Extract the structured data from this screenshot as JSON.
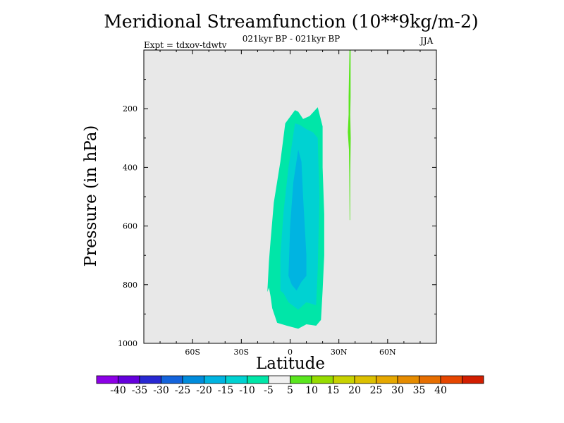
{
  "chart_data": {
    "type": "contour",
    "title": "Meridional Streamfunction (10**9kg/m-2)",
    "subtitle": "021kyr BP - 021kyr BP",
    "expt_label": "Expt = tdxov-tdwtv",
    "season": "JJA",
    "xlabel": "Latitude",
    "ylabel": "Pressure (in hPa)",
    "xlim": [
      -90,
      90
    ],
    "ylim": [
      1000,
      0
    ],
    "y_inverted": true,
    "x_ticks": [
      {
        "value": -60,
        "label": "60S"
      },
      {
        "value": -30,
        "label": "30S"
      },
      {
        "value": 0,
        "label": "0"
      },
      {
        "value": 30,
        "label": "30N"
      },
      {
        "value": 60,
        "label": "60N"
      }
    ],
    "y_ticks": [
      {
        "value": 200,
        "label": "200"
      },
      {
        "value": 400,
        "label": "400"
      },
      {
        "value": 600,
        "label": "600"
      },
      {
        "value": 800,
        "label": "800"
      },
      {
        "value": 1000,
        "label": "1000"
      }
    ],
    "background_color": "#e8e8e8",
    "regions": [
      {
        "level": "-10 to -5",
        "color": "#00e6a8",
        "points": [
          [
            -14,
            825
          ],
          [
            -13,
            720
          ],
          [
            -12,
            650
          ],
          [
            -10,
            520
          ],
          [
            -6,
            380
          ],
          [
            -3,
            250
          ],
          [
            3,
            205
          ],
          [
            5,
            210
          ],
          [
            8,
            235
          ],
          [
            12,
            225
          ],
          [
            17,
            195
          ],
          [
            20,
            260
          ],
          [
            20,
            400
          ],
          [
            21,
            560
          ],
          [
            21,
            700
          ],
          [
            20,
            820
          ],
          [
            19,
            920
          ],
          [
            16,
            940
          ],
          [
            10,
            935
          ],
          [
            5,
            950
          ],
          [
            -2,
            940
          ],
          [
            -8,
            930
          ],
          [
            -11,
            880
          ],
          [
            -12,
            840
          ],
          [
            -13,
            810
          ],
          [
            -14,
            825
          ]
        ]
      },
      {
        "level": "-15 to -10",
        "color": "#00d2d2",
        "points": [
          [
            -6,
            820
          ],
          [
            -6,
            700
          ],
          [
            -4,
            550
          ],
          [
            -1,
            400
          ],
          [
            3,
            250
          ],
          [
            6,
            255
          ],
          [
            10,
            270
          ],
          [
            14,
            280
          ],
          [
            17,
            300
          ],
          [
            18,
            500
          ],
          [
            17,
            750
          ],
          [
            16,
            870
          ],
          [
            10,
            860
          ],
          [
            5,
            885
          ],
          [
            -1,
            860
          ],
          [
            -4,
            830
          ],
          [
            -6,
            820
          ]
        ]
      },
      {
        "level": "-20 to -15",
        "color": "#00b4e1",
        "points": [
          [
            -1,
            770
          ],
          [
            0,
            600
          ],
          [
            2,
            450
          ],
          [
            5,
            340
          ],
          [
            7,
            380
          ],
          [
            8,
            500
          ],
          [
            10,
            700
          ],
          [
            10,
            770
          ],
          [
            7,
            790
          ],
          [
            4,
            820
          ],
          [
            1,
            800
          ],
          [
            -1,
            770
          ]
        ]
      },
      {
        "level": "5 to 10",
        "color": "#5ae61e",
        "points": [
          [
            36.5,
            0
          ],
          [
            37.2,
            0
          ],
          [
            37.2,
            160
          ],
          [
            37,
            220
          ],
          [
            37.3,
            300
          ],
          [
            37,
            420
          ],
          [
            36.9,
            580
          ],
          [
            36.6,
            580
          ],
          [
            36.4,
            420
          ],
          [
            36.2,
            340
          ],
          [
            35.5,
            280
          ],
          [
            36,
            220
          ],
          [
            36,
            160
          ],
          [
            36.5,
            0
          ]
        ]
      }
    ],
    "colorbar": {
      "colors": [
        "#8c00e6",
        "#6400dc",
        "#2828d2",
        "#1464dc",
        "#008cdc",
        "#00b4e1",
        "#00d2d2",
        "#00e6a8",
        "#f0f0f0",
        "#5ae61e",
        "#96dc00",
        "#c8d200",
        "#dcc000",
        "#e6a800",
        "#e68c00",
        "#e66e00",
        "#e64600",
        "#d21e00"
      ],
      "labels": [
        "-40",
        "-35",
        "-30",
        "-25",
        "-20",
        "-15",
        "-10",
        "-5",
        "5",
        "10",
        "15",
        "20",
        "25",
        "30",
        "35",
        "40"
      ]
    }
  }
}
